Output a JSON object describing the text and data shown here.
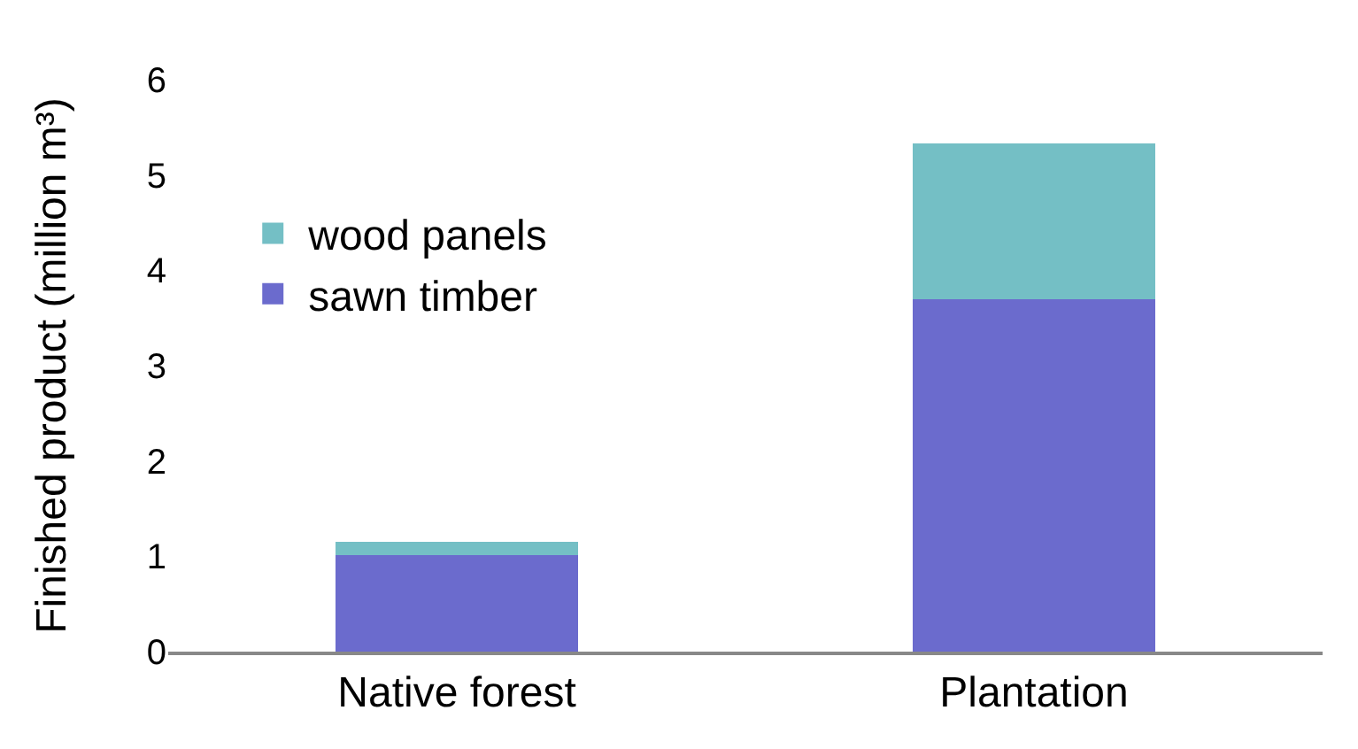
{
  "chart_data": {
    "type": "bar",
    "stacked": true,
    "ylabel": "Finished product (million m³)",
    "categories": [
      "Native forest",
      "Plantation"
    ],
    "series": [
      {
        "name": "sawn timber",
        "color": "#6b6bcd",
        "values": [
          1.01,
          3.7
        ]
      },
      {
        "name": "wood panels",
        "color": "#74bfc5",
        "values": [
          0.14,
          1.63
        ]
      }
    ],
    "ylim": [
      0,
      6
    ],
    "yticks": [
      0,
      1,
      2,
      3,
      4,
      5,
      6
    ],
    "grid": false,
    "legend": "top left"
  }
}
